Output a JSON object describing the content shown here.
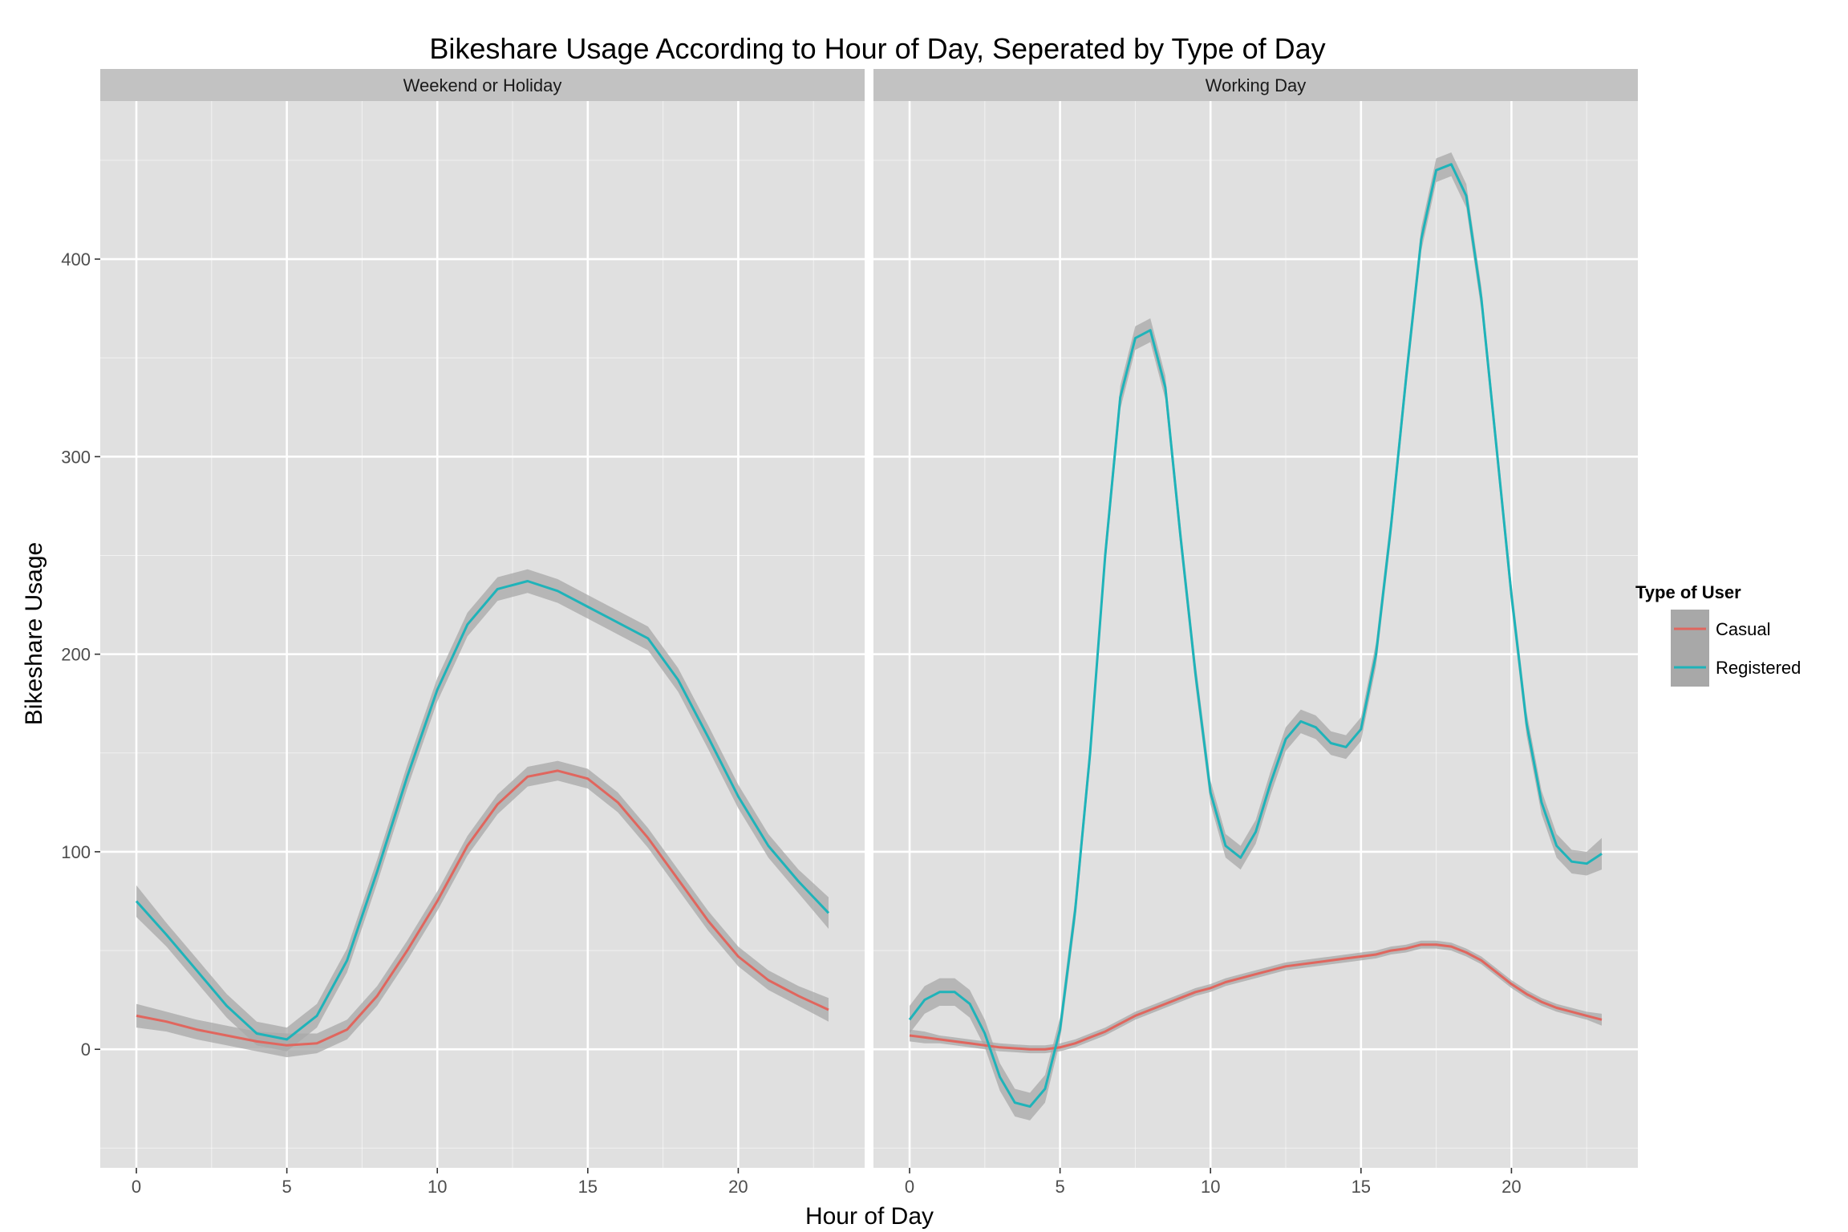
{
  "chart_data": {
    "type": "line",
    "title": "Bikeshare Usage According to Hour of Day, Seperated by Type of Day",
    "xlabel": "Hour of Day",
    "ylabel": "Bikeshare Usage",
    "xlim": [
      -1.2,
      24.2
    ],
    "ylim": [
      -60,
      480
    ],
    "x_ticks": [
      0,
      5,
      10,
      15,
      20
    ],
    "y_ticks": [
      0,
      100,
      200,
      300,
      400
    ],
    "grid": true,
    "legend": {
      "title": "Type of User",
      "position": "right",
      "entries": [
        {
          "name": "Casual",
          "color": "#E0665E"
        },
        {
          "name": "Registered",
          "color": "#1FB3B9"
        }
      ]
    },
    "colors": {
      "panel_bg": "#E0E0E0",
      "strip_bg": "#C2C2C2",
      "grid": "#FFFFFF",
      "ribbon": "#A8A8A8"
    },
    "panels": [
      {
        "label": "Weekend or Holiday",
        "series": [
          {
            "name": "Casual",
            "x": [
              0,
              1,
              2,
              3,
              4,
              5,
              6,
              7,
              8,
              9,
              10,
              11,
              12,
              13,
              14,
              15,
              16,
              17,
              18,
              19,
              20,
              21,
              22,
              23
            ],
            "values": [
              17,
              14,
              10,
              7,
              4,
              2,
              3,
              10,
              27,
              50,
              75,
              103,
              124,
              138,
              141,
              137,
              125,
              107,
              86,
              65,
              47,
              35,
              27,
              20
            ],
            "band": [
              6,
              5,
              5,
              5,
              5,
              6,
              5,
              5,
              5,
              5,
              5,
              5,
              5,
              5,
              5,
              5,
              5,
              5,
              5,
              5,
              5,
              5,
              5,
              6
            ]
          },
          {
            "name": "Registered",
            "x": [
              0,
              1,
              2,
              3,
              4,
              5,
              6,
              7,
              8,
              9,
              10,
              11,
              12,
              13,
              14,
              15,
              16,
              17,
              18,
              19,
              20,
              21,
              22,
              23
            ],
            "values": [
              75,
              58,
              40,
              22,
              8,
              5,
              17,
              45,
              90,
              138,
              182,
              215,
              233,
              237,
              232,
              224,
              216,
              208,
              187,
              158,
              128,
              103,
              85,
              69
            ],
            "band": [
              8,
              6,
              6,
              6,
              6,
              6,
              6,
              6,
              6,
              6,
              6,
              6,
              6,
              6,
              6,
              6,
              6,
              6,
              6,
              6,
              6,
              6,
              6,
              8
            ]
          }
        ]
      },
      {
        "label": "Working Day",
        "series": [
          {
            "name": "Casual",
            "x": [
              0,
              0.5,
              1,
              1.5,
              2,
              2.5,
              3,
              3.5,
              4,
              4.5,
              5,
              5.5,
              6,
              6.5,
              7,
              7.5,
              8,
              8.5,
              9,
              9.5,
              10,
              10.5,
              11,
              11.5,
              12,
              12.5,
              13,
              13.5,
              14,
              14.5,
              15,
              15.5,
              16,
              16.5,
              17,
              17.5,
              18,
              18.5,
              19,
              19.5,
              20,
              20.5,
              21,
              21.5,
              22,
              22.5,
              23
            ],
            "values": [
              7,
              6,
              5,
              4,
              3,
              2,
              1,
              0.5,
              0,
              0,
              1,
              3,
              6,
              9,
              13,
              17,
              20,
              23,
              26,
              29,
              31,
              34,
              36,
              38,
              40,
              42,
              43,
              44,
              45,
              46,
              47,
              48,
              50,
              51,
              53,
              53,
              52,
              49,
              45,
              39,
              33,
              28,
              24,
              21,
              19,
              17,
              15
            ],
            "band": [
              3,
              3,
              2,
              2,
              2,
              2,
              2,
              2,
              2,
              2,
              2,
              2,
              2,
              2,
              2,
              2,
              2,
              2,
              2,
              2,
              2,
              2,
              2,
              2,
              2,
              2,
              2,
              2,
              2,
              2,
              2,
              2,
              2,
              2,
              2,
              2,
              2,
              2,
              2,
              2,
              2,
              2,
              2,
              2,
              2,
              2,
              3
            ]
          },
          {
            "name": "Registered",
            "x": [
              0,
              0.5,
              1,
              1.5,
              2,
              2.5,
              3,
              3.5,
              4,
              4.5,
              5,
              5.5,
              6,
              6.5,
              7,
              7.5,
              8,
              8.5,
              9,
              9.5,
              10,
              10.5,
              11,
              11.5,
              12,
              12.5,
              13,
              13.5,
              14,
              14.5,
              15,
              15.5,
              16,
              16.5,
              17,
              17.5,
              18,
              18.5,
              19,
              19.5,
              20,
              20.5,
              21,
              21.5,
              22,
              22.5,
              23
            ],
            "values": [
              15,
              25,
              29,
              29,
              23,
              8,
              -14,
              -27,
              -29,
              -20,
              10,
              70,
              150,
              250,
              330,
              360,
              364,
              335,
              260,
              190,
              130,
              103,
              97,
              110,
              135,
              157,
              166,
              163,
              155,
              153,
              162,
              200,
              265,
              340,
              410,
              445,
              448,
              432,
              380,
              305,
              230,
              165,
              125,
              103,
              95,
              94,
              99
            ],
            "band": [
              7,
              7,
              7,
              7,
              7,
              7,
              7,
              7,
              7,
              7,
              6,
              6,
              6,
              6,
              6,
              6,
              6,
              6,
              6,
              6,
              6,
              6,
              6,
              6,
              6,
              6,
              6,
              6,
              6,
              6,
              6,
              6,
              6,
              6,
              6,
              6,
              6,
              6,
              6,
              6,
              6,
              6,
              6,
              6,
              6,
              6,
              8
            ]
          }
        ]
      }
    ]
  }
}
